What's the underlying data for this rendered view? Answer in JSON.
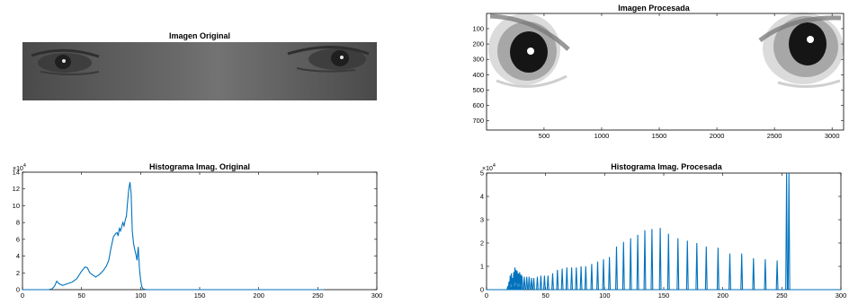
{
  "figure": {
    "panels": [
      {
        "id": "orig_img",
        "title": "Imagen Original"
      },
      {
        "id": "proc_img",
        "title": "Imagen Procesada"
      },
      {
        "id": "orig_hist",
        "title": "Histograma Imag. Original"
      },
      {
        "id": "proc_hist",
        "title": "Histograma Imag. Procesada"
      }
    ],
    "colors": {
      "line": "#0072BD",
      "axis": "#000000",
      "processed_bg": "#ffffff",
      "original_bg": "#5a5a5a"
    }
  },
  "chart_data": [
    {
      "type": "image",
      "title": "Imagen Original",
      "description_shown": "grayscale eye region",
      "axes_visible": false
    },
    {
      "type": "image",
      "title": "Imagen Procesada",
      "xticks": [
        500,
        1000,
        1500,
        2000,
        2500,
        3000
      ],
      "yticks": [
        100,
        200,
        300,
        400,
        500,
        600,
        700
      ],
      "xlim": [
        1,
        3100
      ],
      "ylim": [
        1,
        760
      ],
      "y_reversed": true
    },
    {
      "type": "line",
      "title": "Histograma Imag. Original",
      "xlim": [
        0,
        300
      ],
      "ylim": [
        0,
        14
      ],
      "y_exponent_label": "×10^4",
      "xticks": [
        0,
        50,
        100,
        150,
        200,
        250,
        300
      ],
      "yticks": [
        0,
        2,
        4,
        6,
        8,
        10,
        12,
        14
      ],
      "series": [
        {
          "x": [
            0,
            22,
            25,
            27,
            29,
            31,
            34,
            38,
            42,
            46,
            50,
            53,
            55,
            57,
            59,
            62,
            65,
            68,
            71,
            73,
            75,
            77,
            78,
            79,
            80,
            81,
            82,
            83,
            84,
            85,
            86,
            87,
            88,
            89,
            90,
            91,
            92,
            93,
            94,
            95,
            96,
            97,
            98,
            99,
            100,
            101,
            102,
            104,
            106,
            150,
            200,
            255
          ],
          "y": [
            0,
            0,
            0.1,
            0.4,
            1.0,
            0.7,
            0.5,
            0.7,
            0.9,
            1.3,
            2.2,
            2.7,
            2.6,
            2.0,
            1.8,
            1.5,
            1.8,
            2.2,
            2.8,
            3.5,
            5.0,
            6.3,
            6.5,
            6.7,
            6.8,
            6.4,
            7.3,
            7.0,
            7.5,
            8.0,
            7.6,
            8.3,
            8.8,
            10.5,
            12.0,
            12.8,
            11.5,
            7.0,
            5.5,
            4.8,
            4.2,
            3.5,
            5.1,
            2.6,
            1.2,
            0.4,
            0.1,
            0.02,
            0,
            0,
            0,
            0
          ]
        }
      ]
    },
    {
      "type": "line",
      "title": "Histograma Imag. Procesada",
      "xlim": [
        0,
        300
      ],
      "ylim": [
        0,
        5
      ],
      "y_exponent_label": "×10^4",
      "xticks": [
        0,
        50,
        100,
        150,
        200,
        250,
        300
      ],
      "yticks": [
        0,
        1,
        2,
        3,
        4,
        5
      ],
      "spike_series": [
        {
          "x": 18,
          "y": 0.15
        },
        {
          "x": 19,
          "y": 0.35
        },
        {
          "x": 20,
          "y": 0.6
        },
        {
          "x": 21,
          "y": 0.7
        },
        {
          "x": 22,
          "y": 0.5
        },
        {
          "x": 23,
          "y": 0.75
        },
        {
          "x": 24,
          "y": 0.95
        },
        {
          "x": 25,
          "y": 0.85
        },
        {
          "x": 26,
          "y": 0.8
        },
        {
          "x": 27,
          "y": 0.7
        },
        {
          "x": 28,
          "y": 0.75
        },
        {
          "x": 29,
          "y": 0.65
        },
        {
          "x": 30,
          "y": 0.6
        },
        {
          "x": 32,
          "y": 0.55
        },
        {
          "x": 34,
          "y": 0.55
        },
        {
          "x": 36,
          "y": 0.55
        },
        {
          "x": 38,
          "y": 0.5
        },
        {
          "x": 40,
          "y": 0.5
        },
        {
          "x": 43,
          "y": 0.55
        },
        {
          "x": 46,
          "y": 0.6
        },
        {
          "x": 49,
          "y": 0.6
        },
        {
          "x": 52,
          "y": 0.6
        },
        {
          "x": 56,
          "y": 0.7
        },
        {
          "x": 60,
          "y": 0.85
        },
        {
          "x": 64,
          "y": 0.9
        },
        {
          "x": 68,
          "y": 0.95
        },
        {
          "x": 72,
          "y": 0.95
        },
        {
          "x": 76,
          "y": 0.95
        },
        {
          "x": 80,
          "y": 1.0
        },
        {
          "x": 84,
          "y": 1.0
        },
        {
          "x": 89,
          "y": 1.1
        },
        {
          "x": 94,
          "y": 1.2
        },
        {
          "x": 99,
          "y": 1.3
        },
        {
          "x": 104,
          "y": 1.4
        },
        {
          "x": 110,
          "y": 1.85
        },
        {
          "x": 116,
          "y": 2.05
        },
        {
          "x": 122,
          "y": 2.2
        },
        {
          "x": 128,
          "y": 2.35
        },
        {
          "x": 134,
          "y": 2.55
        },
        {
          "x": 140,
          "y": 2.6
        },
        {
          "x": 147,
          "y": 2.65
        },
        {
          "x": 154,
          "y": 2.4
        },
        {
          "x": 162,
          "y": 2.2
        },
        {
          "x": 170,
          "y": 2.1
        },
        {
          "x": 178,
          "y": 2.0
        },
        {
          "x": 186,
          "y": 1.85
        },
        {
          "x": 196,
          "y": 1.8
        },
        {
          "x": 206,
          "y": 1.55
        },
        {
          "x": 216,
          "y": 1.55
        },
        {
          "x": 226,
          "y": 1.35
        },
        {
          "x": 236,
          "y": 1.3
        },
        {
          "x": 246,
          "y": 1.25
        },
        {
          "x": 254,
          "y": 5.0
        },
        {
          "x": 256,
          "y": 5.0
        }
      ]
    }
  ]
}
